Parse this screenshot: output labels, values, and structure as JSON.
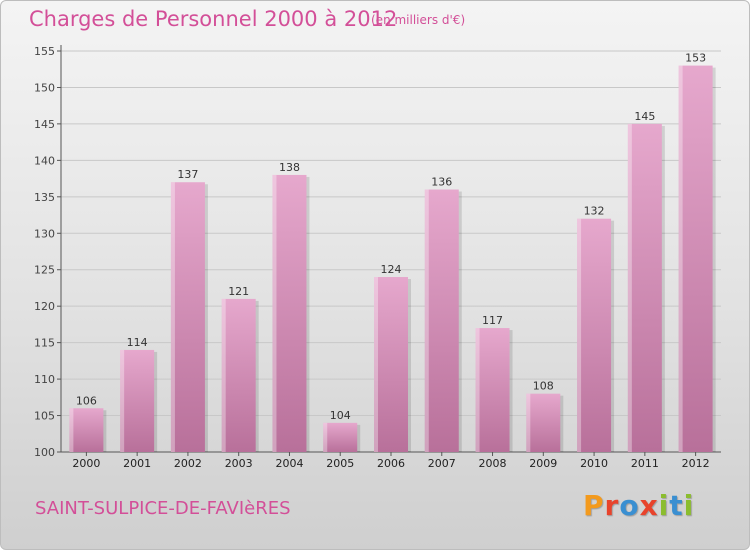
{
  "header": {
    "title": "Charges de Personnel 2000 à 2012",
    "subtitle": "(en milliers d'€)"
  },
  "footer": {
    "commune": "SAINT-SULPICE-DE-FAVIèRES",
    "logo_letters": [
      "P",
      "r",
      "o",
      "x",
      "i",
      "t",
      "i"
    ],
    "logo_colors": [
      "#f39a1d",
      "#e8432b",
      "#3a8fd1",
      "#e8432b",
      "#8bbd2e",
      "#3a8fd1",
      "#8bbd2e"
    ]
  },
  "chart_data": {
    "type": "bar",
    "categories": [
      "2000",
      "2001",
      "2002",
      "2003",
      "2004",
      "2005",
      "2006",
      "2007",
      "2008",
      "2009",
      "2010",
      "2011",
      "2012"
    ],
    "values": [
      106,
      114,
      137,
      121,
      138,
      104,
      124,
      136,
      117,
      108,
      132,
      145,
      153
    ],
    "data_labels": [
      "106",
      "114",
      "137",
      "121",
      "138",
      "104",
      "124",
      "136",
      "117",
      "108",
      "132",
      "145",
      "153"
    ],
    "ylim": [
      100,
      155
    ],
    "yticks": [
      100,
      105,
      110,
      115,
      120,
      125,
      130,
      135,
      140,
      145,
      150,
      155
    ],
    "ytick_labels": [
      "100",
      "105",
      "110",
      "115",
      "120",
      "125",
      "130",
      "135",
      "140",
      "145",
      "150",
      "155"
    ],
    "grid": true,
    "bar_color_top": "#e6a8cd",
    "bar_color_bottom": "#b8709a",
    "title": "Charges de Personnel 2000 à 2012",
    "xlabel": "",
    "ylabel": ""
  }
}
